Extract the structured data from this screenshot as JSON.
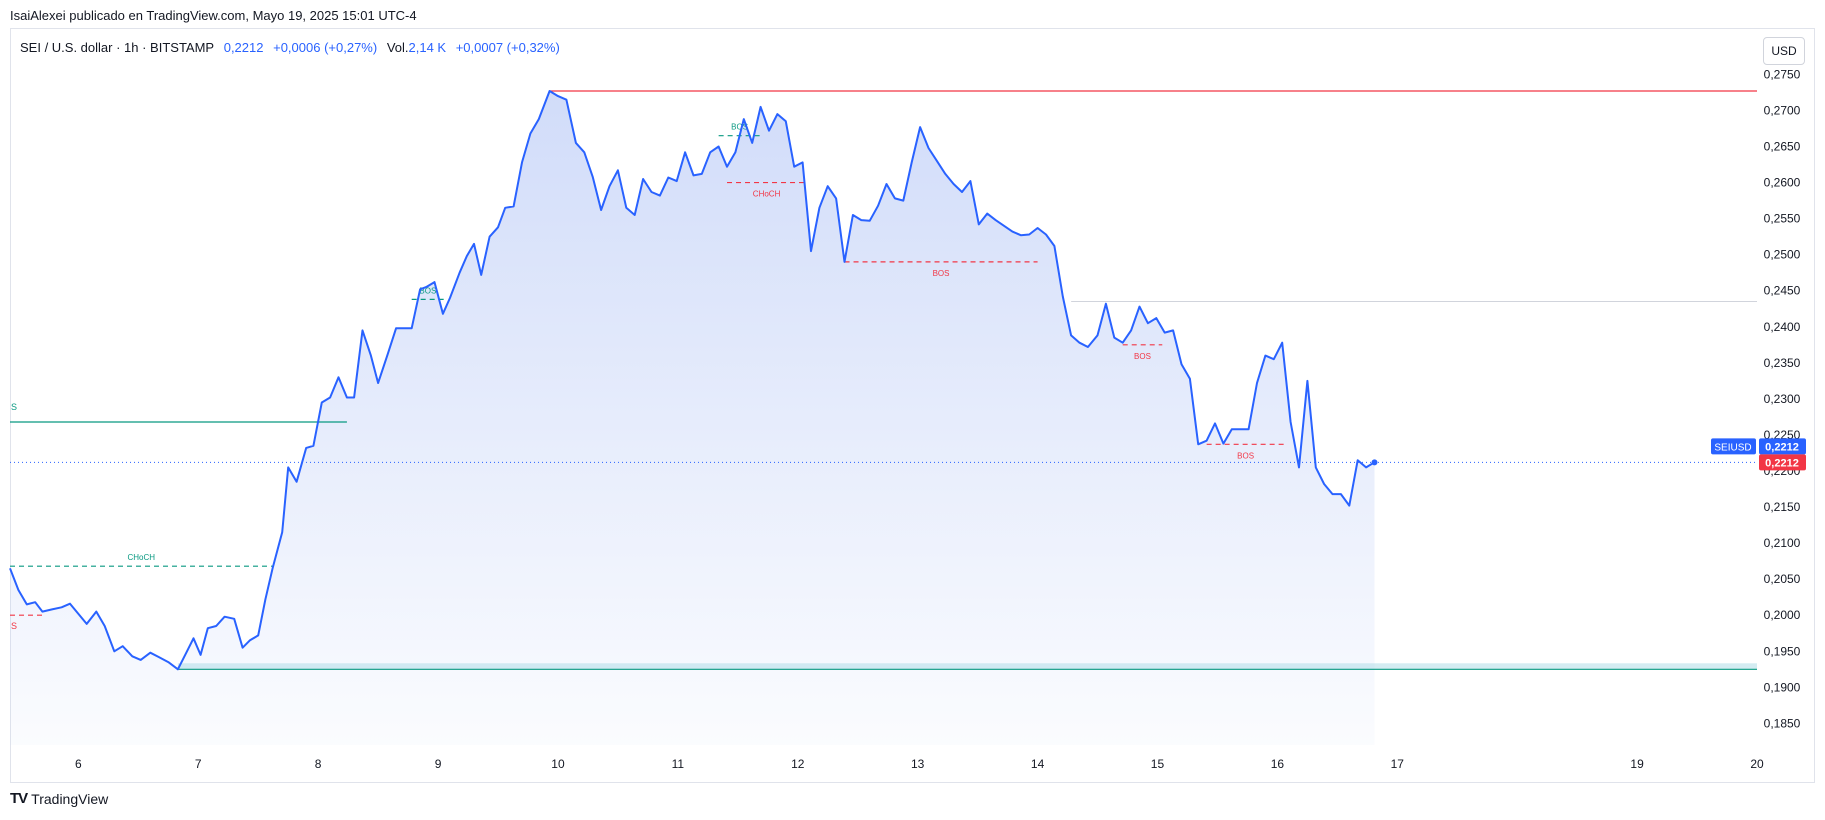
{
  "header": {
    "publisher_line": "IsaiAlexei publicado en TradingView.com, Mayo 19, 2025 15:01 UTC-4"
  },
  "symbol": {
    "name": "SEI / U.S. dollar · 1h · BITSTAMP",
    "price": "0,2212",
    "change": "+0,0006 (+0,27%)",
    "vol_label": "Vol.",
    "vol_value": "2,14 K",
    "vol_change": "+0,0007 (+0,32%)"
  },
  "currency_button": "USD",
  "footer": {
    "brand": "TradingView",
    "logo_glyph": "TV"
  },
  "colors": {
    "line": "#2962ff",
    "area_top": "#c9d6f8",
    "resistance": "#f23645",
    "bullish": "#089981",
    "bearish": "#f23645"
  },
  "chart_data": {
    "type": "area",
    "title": "",
    "xlabel": "",
    "ylabel": "",
    "ylim": [
      0.182,
      0.277
    ],
    "xlim": [
      5.43,
      20.0
    ],
    "yticks": [
      "0,1850",
      "0,1900",
      "0,1950",
      "0,2000",
      "0,2050",
      "0,2100",
      "0,2150",
      "0,2200",
      "0,2250",
      "0,2300",
      "0,2350",
      "0,2400",
      "0,2450",
      "0,2500",
      "0,2550",
      "0,2600",
      "0,2650",
      "0,2700",
      "0,2750"
    ],
    "ytick_values": [
      0.185,
      0.19,
      0.195,
      0.2,
      0.205,
      0.21,
      0.215,
      0.22,
      0.225,
      0.23,
      0.235,
      0.24,
      0.245,
      0.25,
      0.255,
      0.26,
      0.265,
      0.27,
      0.275
    ],
    "xticks": [
      "6",
      "7",
      "8",
      "9",
      "10",
      "11",
      "12",
      "13",
      "14",
      "15",
      "16",
      "17",
      "19",
      "20"
    ],
    "xtick_values": [
      6,
      7,
      8,
      9,
      10,
      11,
      12,
      13,
      14,
      15,
      16,
      17,
      19,
      20
    ],
    "series": [
      {
        "name": "SEIUSD",
        "points": [
          [
            5.43,
            0.2065
          ],
          [
            5.5,
            0.2035
          ],
          [
            5.57,
            0.2015
          ],
          [
            5.64,
            0.2018
          ],
          [
            5.7,
            0.2005
          ],
          [
            5.78,
            0.2008
          ],
          [
            5.86,
            0.2011
          ],
          [
            5.93,
            0.2016
          ],
          [
            6.0,
            0.2002
          ],
          [
            6.07,
            0.1988
          ],
          [
            6.15,
            0.2005
          ],
          [
            6.22,
            0.1985
          ],
          [
            6.3,
            0.195
          ],
          [
            6.37,
            0.1957
          ],
          [
            6.45,
            0.1943
          ],
          [
            6.52,
            0.1938
          ],
          [
            6.6,
            0.1948
          ],
          [
            6.67,
            0.1942
          ],
          [
            6.75,
            0.1935
          ],
          [
            6.83,
            0.1925
          ],
          [
            6.9,
            0.1948
          ],
          [
            6.96,
            0.1968
          ],
          [
            7.02,
            0.1945
          ],
          [
            7.08,
            0.1982
          ],
          [
            7.15,
            0.1985
          ],
          [
            7.22,
            0.1998
          ],
          [
            7.3,
            0.1995
          ],
          [
            7.37,
            0.1955
          ],
          [
            7.43,
            0.1965
          ],
          [
            7.5,
            0.1972
          ],
          [
            7.56,
            0.2022
          ],
          [
            7.62,
            0.2065
          ],
          [
            7.7,
            0.2115
          ],
          [
            7.75,
            0.2205
          ],
          [
            7.82,
            0.2185
          ],
          [
            7.9,
            0.2232
          ],
          [
            7.96,
            0.2235
          ],
          [
            8.03,
            0.2295
          ],
          [
            8.1,
            0.2302
          ],
          [
            8.17,
            0.233
          ],
          [
            8.24,
            0.2302
          ],
          [
            8.3,
            0.2302
          ],
          [
            8.37,
            0.2395
          ],
          [
            8.44,
            0.236
          ],
          [
            8.5,
            0.2322
          ],
          [
            8.58,
            0.2362
          ],
          [
            8.65,
            0.2398
          ],
          [
            8.78,
            0.2398
          ],
          [
            8.85,
            0.2452
          ],
          [
            8.9,
            0.2455
          ],
          [
            8.97,
            0.2462
          ],
          [
            9.04,
            0.2418
          ],
          [
            9.1,
            0.244
          ],
          [
            9.18,
            0.2475
          ],
          [
            9.24,
            0.2498
          ],
          [
            9.3,
            0.2515
          ],
          [
            9.36,
            0.2472
          ],
          [
            9.43,
            0.2525
          ],
          [
            9.5,
            0.2538
          ],
          [
            9.56,
            0.2565
          ],
          [
            9.63,
            0.2567
          ],
          [
            9.7,
            0.2628
          ],
          [
            9.77,
            0.2668
          ],
          [
            9.84,
            0.2688
          ],
          [
            9.93,
            0.2727
          ],
          [
            10.0,
            0.272
          ],
          [
            10.07,
            0.2715
          ],
          [
            10.15,
            0.2655
          ],
          [
            10.22,
            0.2642
          ],
          [
            10.29,
            0.2608
          ],
          [
            10.36,
            0.2562
          ],
          [
            10.43,
            0.2595
          ],
          [
            10.5,
            0.2617
          ],
          [
            10.57,
            0.2565
          ],
          [
            10.64,
            0.2555
          ],
          [
            10.71,
            0.2605
          ],
          [
            10.78,
            0.2587
          ],
          [
            10.85,
            0.2582
          ],
          [
            10.92,
            0.2607
          ],
          [
            10.99,
            0.2602
          ],
          [
            11.06,
            0.2642
          ],
          [
            11.13,
            0.261
          ],
          [
            11.2,
            0.2612
          ],
          [
            11.27,
            0.2642
          ],
          [
            11.34,
            0.265
          ],
          [
            11.41,
            0.2622
          ],
          [
            11.48,
            0.2642
          ],
          [
            11.55,
            0.2688
          ],
          [
            11.62,
            0.2655
          ],
          [
            11.69,
            0.2705
          ],
          [
            11.76,
            0.2672
          ],
          [
            11.83,
            0.2695
          ],
          [
            11.9,
            0.2685
          ],
          [
            11.97,
            0.2622
          ],
          [
            12.04,
            0.2628
          ],
          [
            12.11,
            0.2505
          ],
          [
            12.18,
            0.2565
          ],
          [
            12.25,
            0.2595
          ],
          [
            12.32,
            0.2578
          ],
          [
            12.39,
            0.249
          ],
          [
            12.46,
            0.2555
          ],
          [
            12.53,
            0.2548
          ],
          [
            12.6,
            0.2547
          ],
          [
            12.67,
            0.2568
          ],
          [
            12.74,
            0.2598
          ],
          [
            12.81,
            0.2578
          ],
          [
            12.88,
            0.2575
          ],
          [
            12.95,
            0.2628
          ],
          [
            13.02,
            0.2677
          ],
          [
            13.09,
            0.2648
          ],
          [
            13.16,
            0.263
          ],
          [
            13.23,
            0.2612
          ],
          [
            13.3,
            0.2598
          ],
          [
            13.37,
            0.2587
          ],
          [
            13.44,
            0.2602
          ],
          [
            13.51,
            0.2542
          ],
          [
            13.58,
            0.2557
          ],
          [
            13.65,
            0.2548
          ],
          [
            13.72,
            0.254
          ],
          [
            13.79,
            0.2532
          ],
          [
            13.86,
            0.2527
          ],
          [
            13.93,
            0.2528
          ],
          [
            14.0,
            0.2537
          ],
          [
            14.07,
            0.2528
          ],
          [
            14.14,
            0.2512
          ],
          [
            14.21,
            0.2442
          ],
          [
            14.28,
            0.2388
          ],
          [
            14.35,
            0.2378
          ],
          [
            14.42,
            0.2372
          ],
          [
            14.5,
            0.2388
          ],
          [
            14.57,
            0.2432
          ],
          [
            14.64,
            0.2385
          ],
          [
            14.71,
            0.2378
          ],
          [
            14.78,
            0.2395
          ],
          [
            14.85,
            0.2428
          ],
          [
            14.92,
            0.2405
          ],
          [
            14.99,
            0.2412
          ],
          [
            15.06,
            0.2392
          ],
          [
            15.13,
            0.2395
          ],
          [
            15.2,
            0.2348
          ],
          [
            15.27,
            0.2328
          ],
          [
            15.34,
            0.2237
          ],
          [
            15.41,
            0.2242
          ],
          [
            15.48,
            0.2266
          ],
          [
            15.55,
            0.2238
          ],
          [
            15.62,
            0.2258
          ],
          [
            15.69,
            0.2258
          ],
          [
            15.76,
            0.2258
          ],
          [
            15.83,
            0.2322
          ],
          [
            15.9,
            0.236
          ],
          [
            15.97,
            0.2355
          ],
          [
            16.04,
            0.2378
          ],
          [
            16.11,
            0.2268
          ],
          [
            16.18,
            0.2205
          ],
          [
            16.25,
            0.2325
          ],
          [
            16.32,
            0.2205
          ],
          [
            16.39,
            0.2182
          ],
          [
            16.46,
            0.2168
          ],
          [
            16.53,
            0.2168
          ],
          [
            16.6,
            0.2152
          ],
          [
            16.67,
            0.2215
          ],
          [
            16.74,
            0.2205
          ],
          [
            16.81,
            0.2212
          ]
        ]
      }
    ],
    "last_price_label": "0,2212",
    "symbol_tag": "SEIUSD",
    "annotations": [
      {
        "label": "BOS",
        "kind": "bullish",
        "y": 0.2438,
        "x1": 8.78,
        "x2": 9.05
      },
      {
        "label": "BOS",
        "kind": "bullish",
        "y": 0.2665,
        "x1": 11.34,
        "x2": 11.69
      },
      {
        "label": "CHoCH",
        "kind": "bearish",
        "y": 0.26,
        "x1": 11.41,
        "x2": 12.07
      },
      {
        "label": "BOS",
        "kind": "bearish",
        "y": 0.249,
        "x1": 12.39,
        "x2": 14.0
      },
      {
        "label": "BOS",
        "kind": "bearish",
        "y": 0.2375,
        "x1": 14.71,
        "x2": 15.04
      },
      {
        "label": "BOS",
        "kind": "bearish",
        "y": 0.2237,
        "x1": 15.41,
        "x2": 16.06
      },
      {
        "label": "CHoCH",
        "kind": "bullish",
        "y": 0.2068,
        "x1": 5.43,
        "x2": 7.62
      },
      {
        "label": "S",
        "kind": "bearish",
        "y": 0.2,
        "x1": 5.43,
        "x2": 5.7
      },
      {
        "label": "S",
        "kind": "bullish",
        "y": 0.2268,
        "x1": 5.43,
        "x2": 8.24
      }
    ],
    "levels": [
      {
        "kind": "resistance",
        "y": 0.2727,
        "x1": 9.93,
        "x2": 20.0
      },
      {
        "kind": "support",
        "y": 0.1925,
        "x1": 6.83,
        "x2": 20.0
      },
      {
        "kind": "grey",
        "y": 0.2435,
        "x1": 14.28,
        "x2": 20.0
      }
    ],
    "grid": false,
    "legend": "none"
  }
}
